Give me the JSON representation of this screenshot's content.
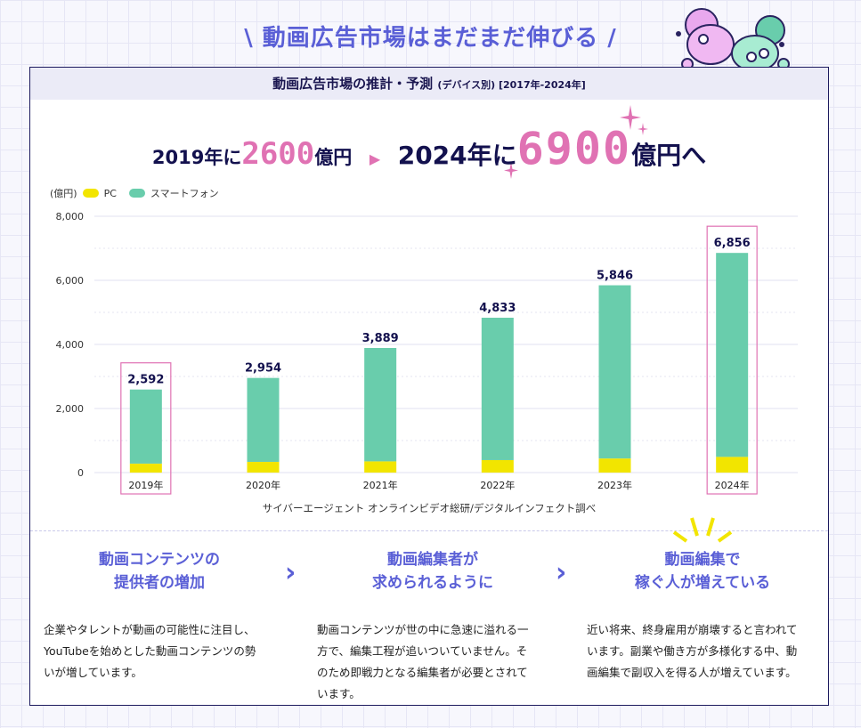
{
  "title": "動画広告市場はまだまだ伸びる",
  "title_deco_left": "\\",
  "title_deco_right": "/",
  "card": {
    "heading": "動画広告市場の推計・予測",
    "heading_sub": "(デバイス別) [2017年-2024年]"
  },
  "headline": {
    "part1": "2019年に",
    "num1": "2600",
    "unit1": "億円",
    "part2": "2024年に",
    "num2": "6900",
    "unit2": "億円へ"
  },
  "colors": {
    "pc": "#f2e500",
    "smartphone": "#69cdac",
    "accent": "#5a5fd6",
    "pink": "#e072b3"
  },
  "chart_data": {
    "type": "bar",
    "stacked": true,
    "title": "動画広告市場の推計・予測 (デバイス別) [2017年-2024年]",
    "ylabel": "(億円)",
    "ylim": [
      0,
      8000
    ],
    "yticks": [
      0,
      2000,
      4000,
      6000,
      8000
    ],
    "ytick_labels": [
      "0",
      "2,000",
      "4,000",
      "6,000",
      "8,000"
    ],
    "categories": [
      "2019年",
      "2020年",
      "2021年",
      "2022年",
      "2023年",
      "2024年"
    ],
    "totals": [
      2592,
      2954,
      3889,
      4833,
      5846,
      6856
    ],
    "total_labels": [
      "2,592",
      "2,954",
      "3,889",
      "4,833",
      "5,846",
      "6,856"
    ],
    "series": [
      {
        "name": "PC",
        "values": [
          280,
          334,
          350,
          390,
          440,
          490
        ]
      },
      {
        "name": "スマートフォン",
        "values": [
          2312,
          2620,
          3539,
          4443,
          5406,
          6366
        ]
      }
    ],
    "highlighted": [
      "2019年",
      "2024年"
    ],
    "grid": true,
    "legend": "top-left",
    "source": "サイバーエージェント オンラインビデオ総研/デジタルインフェクト調べ"
  },
  "columns": [
    {
      "title1": "動画コンテンツの",
      "title2": "提供者の増加",
      "body": "企業やタレントが動画の可能性に注目し、YouTubeを始めとした動画コンテンツの勢いが増しています。"
    },
    {
      "title1": "動画編集者が",
      "title2": "求められるように",
      "body": "動画コンテンツが世の中に急速に溢れる一方で、編集工程が追いついていません。そのため即戦力となる編集者が必要とされています。"
    },
    {
      "title1": "動画編集で",
      "title2": "稼ぐ人が増えている",
      "body": "近い将来、終身雇用が崩壊すると言われています。副業や働き方が多様化する中、動画編集で副収入を得る人が増えています。"
    }
  ],
  "chevron": "›"
}
